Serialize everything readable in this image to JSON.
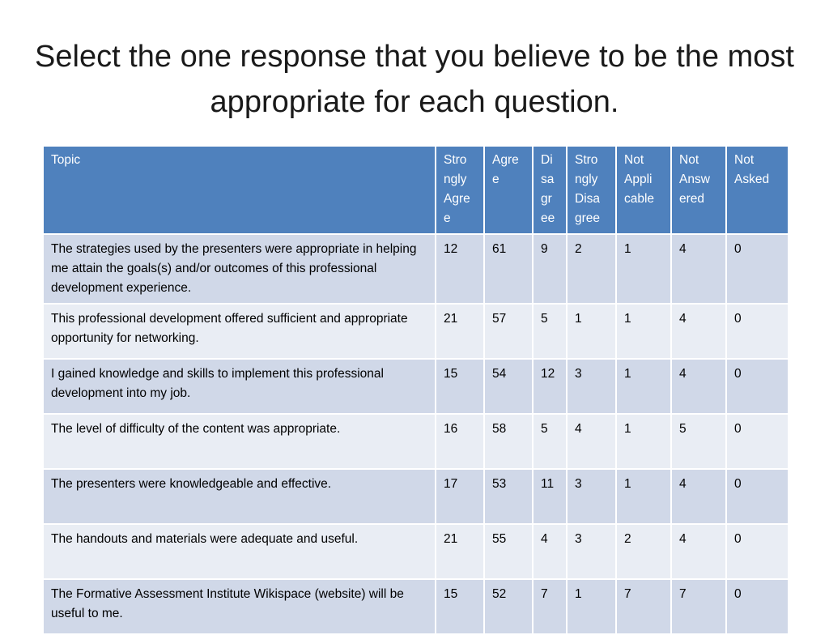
{
  "title": "Select the one response that you believe to be the most appropriate for each question.",
  "colors": {
    "header_bg": "#4f81bd",
    "row_dark": "#d0d8e8",
    "row_light": "#e9edf4"
  },
  "table": {
    "headers": [
      "Topic",
      "Stro ngly Agre e",
      "Agre e",
      "Di sa gr ee",
      "Stro ngly Disa gree",
      "Not Appli cable",
      "Not Answ ered",
      "Not Asked"
    ],
    "rows": [
      [
        "The strategies used by the presenters were appropriate in helping me attain the goals(s) and/or outcomes of this professional development experience.",
        "12",
        "61",
        "9",
        "2",
        "1",
        "4",
        "0"
      ],
      [
        "This professional development offered sufficient and appropriate opportunity for networking.",
        "21",
        "57",
        "5",
        "1",
        "1",
        "4",
        "0"
      ],
      [
        "I gained knowledge and skills to implement this professional development into my job.",
        "15",
        "54",
        "12",
        "3",
        "1",
        "4",
        "0"
      ],
      [
        "The level of difficulty of the content was appropriate.",
        "16",
        "58",
        "5",
        "4",
        "1",
        "5",
        "0"
      ],
      [
        "The presenters were knowledgeable and effective.",
        "17",
        "53",
        "11",
        "3",
        "1",
        "4",
        "0"
      ],
      [
        "The handouts and materials were adequate and useful.",
        "21",
        "55",
        "4",
        "3",
        "2",
        "4",
        "0"
      ],
      [
        "The Formative Assessment Institute Wikispace (website) will be useful to me.",
        "15",
        "52",
        "7",
        "1",
        "7",
        "7",
        "0"
      ]
    ]
  }
}
